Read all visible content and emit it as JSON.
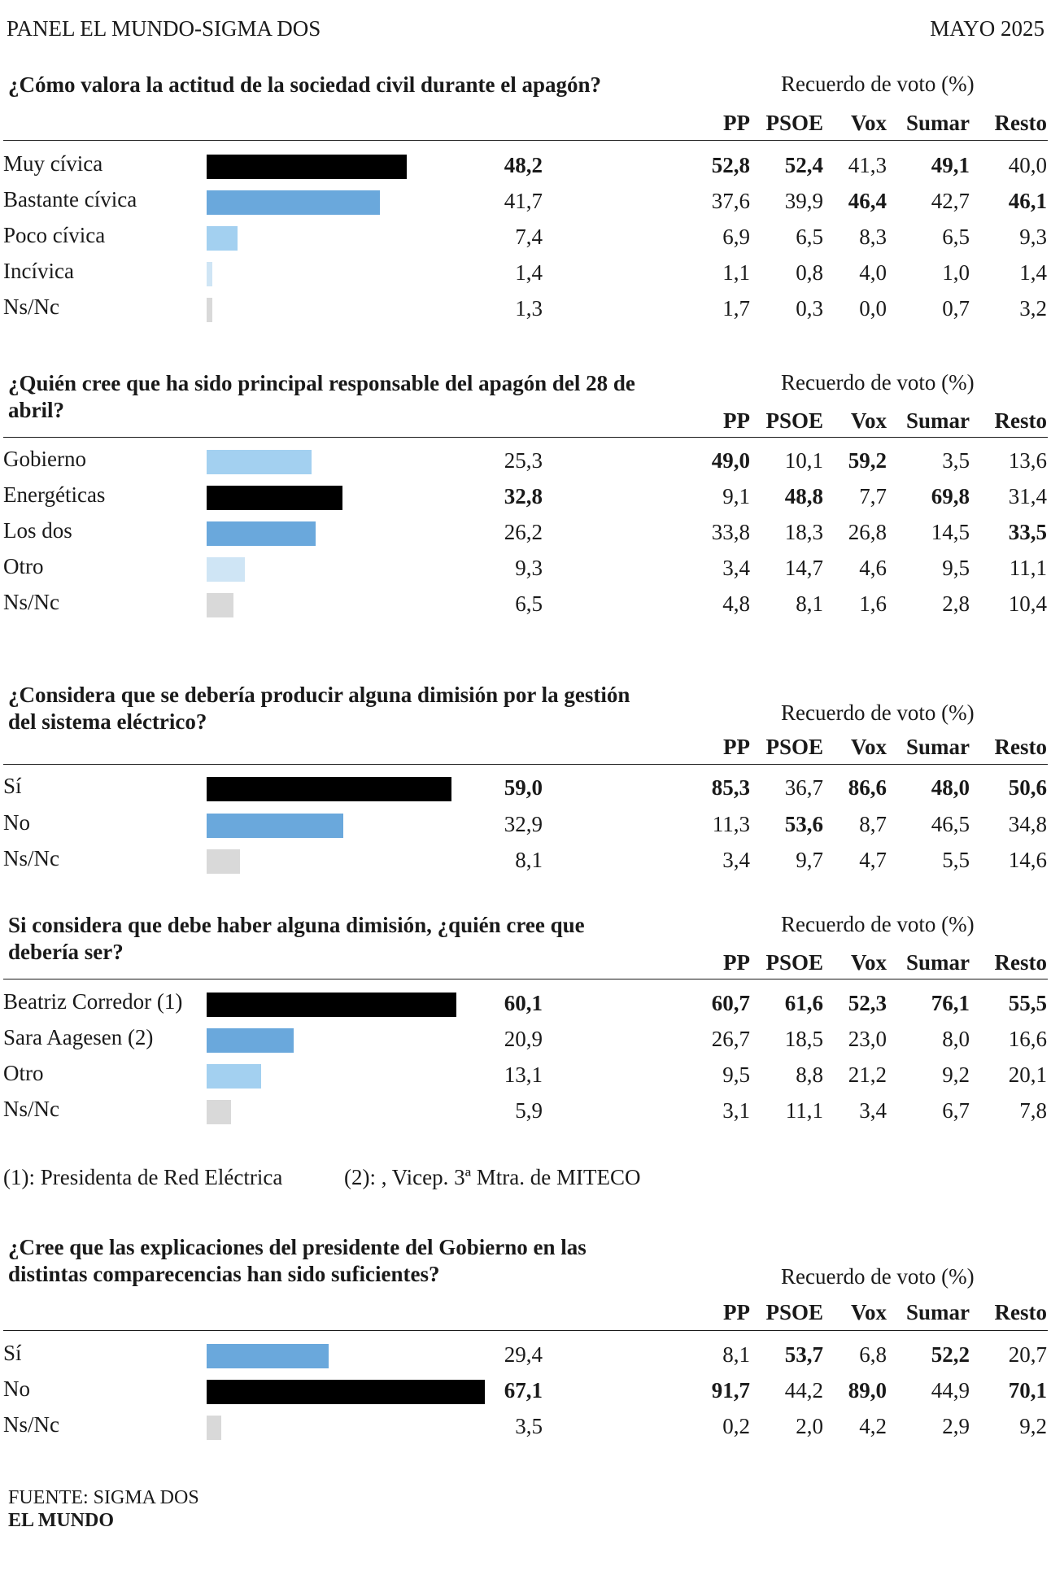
{
  "header": {
    "panel": "PANEL EL MUNDO-SIGMA DOS",
    "date": "MAYO 2025"
  },
  "colors": {
    "black": "#000000",
    "medium_blue": "#6aa8dc",
    "light_blue": "#a3d0f0",
    "pale_blue": "#cfe5f5",
    "gray": "#d9d9d9"
  },
  "columns": [
    "PP",
    "PSOE",
    "Vox",
    "Sumar",
    "Resto"
  ],
  "chart_data": [
    {
      "type": "table",
      "title": "¿Cómo valora la actitud de la sociedad civil durante el apagón?",
      "subtitle": "Recuerdo de voto (%)",
      "rows": [
        {
          "label": "Muy cívica",
          "total": "48,2",
          "total_bold": true,
          "value": 48.2,
          "color": "#000000",
          "cells": [
            "52,8",
            "52,4",
            "41,3",
            "49,1",
            "40,0"
          ],
          "bold": [
            true,
            true,
            false,
            true,
            false
          ]
        },
        {
          "label": "Bastante cívica",
          "total": "41,7",
          "total_bold": false,
          "value": 41.7,
          "color": "#6aa8dc",
          "cells": [
            "37,6",
            "39,9",
            "46,4",
            "42,7",
            "46,1"
          ],
          "bold": [
            false,
            false,
            true,
            false,
            true
          ]
        },
        {
          "label": "Poco cívica",
          "total": "7,4",
          "total_bold": false,
          "value": 7.4,
          "color": "#a3d0f0",
          "cells": [
            "6,9",
            "6,5",
            "8,3",
            "6,5",
            "9,3"
          ],
          "bold": [
            false,
            false,
            false,
            false,
            false
          ]
        },
        {
          "label": "Incívica",
          "total": "1,4",
          "total_bold": false,
          "value": 1.4,
          "color": "#cfe5f5",
          "cells": [
            "1,1",
            "0,8",
            "4,0",
            "1,0",
            "1,4"
          ],
          "bold": [
            false,
            false,
            false,
            false,
            false
          ]
        },
        {
          "label": "Ns/Nc",
          "total": "1,3",
          "total_bold": false,
          "value": 1.3,
          "color": "#d9d9d9",
          "cells": [
            "1,7",
            "0,3",
            "0,0",
            "0,7",
            "3,2"
          ],
          "bold": [
            false,
            false,
            false,
            false,
            false
          ]
        }
      ]
    },
    {
      "type": "table",
      "title": "¿Quién cree que ha sido principal responsable del apagón del 28 de abril?",
      "subtitle": "Recuerdo de voto (%)",
      "rows": [
        {
          "label": "Gobierno",
          "total": "25,3",
          "total_bold": false,
          "value": 25.3,
          "color": "#a3d0f0",
          "cells": [
            "49,0",
            "10,1",
            "59,2",
            "3,5",
            "13,6"
          ],
          "bold": [
            true,
            false,
            true,
            false,
            false
          ]
        },
        {
          "label": "Energéticas",
          "total": "32,8",
          "total_bold": true,
          "value": 32.8,
          "color": "#000000",
          "cells": [
            "9,1",
            "48,8",
            "7,7",
            "69,8",
            "31,4"
          ],
          "bold": [
            false,
            true,
            false,
            true,
            false
          ]
        },
        {
          "label": "Los dos",
          "total": "26,2",
          "total_bold": false,
          "value": 26.2,
          "color": "#6aa8dc",
          "cells": [
            "33,8",
            "18,3",
            "26,8",
            "14,5",
            "33,5"
          ],
          "bold": [
            false,
            false,
            false,
            false,
            true
          ]
        },
        {
          "label": "Otro",
          "total": "9,3",
          "total_bold": false,
          "value": 9.3,
          "color": "#cfe5f5",
          "cells": [
            "3,4",
            "14,7",
            "4,6",
            "9,5",
            "11,1"
          ],
          "bold": [
            false,
            false,
            false,
            false,
            false
          ]
        },
        {
          "label": "Ns/Nc",
          "total": "6,5",
          "total_bold": false,
          "value": 6.5,
          "color": "#d9d9d9",
          "cells": [
            "4,8",
            "8,1",
            "1,6",
            "2,8",
            "10,4"
          ],
          "bold": [
            false,
            false,
            false,
            false,
            false
          ]
        }
      ]
    },
    {
      "type": "table",
      "title": "¿Considera que se debería producir alguna dimisión por la gestión del sistema eléctrico?",
      "subtitle": "Recuerdo de voto (%)",
      "rows": [
        {
          "label": "Sí",
          "total": "59,0",
          "total_bold": true,
          "value": 59.0,
          "color": "#000000",
          "cells": [
            "85,3",
            "36,7",
            "86,6",
            "48,0",
            "50,6"
          ],
          "bold": [
            true,
            false,
            true,
            true,
            true
          ]
        },
        {
          "label": "No",
          "total": "32,9",
          "total_bold": false,
          "value": 32.9,
          "color": "#6aa8dc",
          "cells": [
            "11,3",
            "53,6",
            "8,7",
            "46,5",
            "34,8"
          ],
          "bold": [
            false,
            true,
            false,
            false,
            false
          ]
        },
        {
          "label": "Ns/Nc",
          "total": "8,1",
          "total_bold": false,
          "value": 8.1,
          "color": "#d9d9d9",
          "cells": [
            "3,4",
            "9,7",
            "4,7",
            "5,5",
            "14,6"
          ],
          "bold": [
            false,
            false,
            false,
            false,
            false
          ]
        }
      ]
    },
    {
      "type": "table",
      "title": "Si considera que debe haber alguna dimisión, ¿quién cree que debería ser?",
      "subtitle": "Recuerdo de voto (%)",
      "rows": [
        {
          "label": "Beatriz Corredor (1)",
          "total": "60,1",
          "total_bold": true,
          "value": 60.1,
          "color": "#000000",
          "cells": [
            "60,7",
            "61,6",
            "52,3",
            "76,1",
            "55,5"
          ],
          "bold": [
            true,
            true,
            true,
            true,
            true
          ]
        },
        {
          "label": "Sara Aagesen (2)",
          "total": "20,9",
          "total_bold": false,
          "value": 20.9,
          "color": "#6aa8dc",
          "cells": [
            "26,7",
            "18,5",
            "23,0",
            "8,0",
            "16,6"
          ],
          "bold": [
            false,
            false,
            false,
            false,
            false
          ]
        },
        {
          "label": "Otro",
          "total": "13,1",
          "total_bold": false,
          "value": 13.1,
          "color": "#a3d0f0",
          "cells": [
            "9,5",
            "8,8",
            "21,2",
            "9,2",
            "20,1"
          ],
          "bold": [
            false,
            false,
            false,
            false,
            false
          ]
        },
        {
          "label": "Ns/Nc",
          "total": "5,9",
          "total_bold": false,
          "value": 5.9,
          "color": "#d9d9d9",
          "cells": [
            "3,1",
            "11,1",
            "3,4",
            "6,7",
            "7,8"
          ],
          "bold": [
            false,
            false,
            false,
            false,
            false
          ]
        }
      ]
    },
    {
      "type": "table",
      "title": "¿Cree que las explicaciones del presidente del  Gobierno en las distintas comparecencias  han sido suficientes?",
      "subtitle": "Recuerdo de voto (%)",
      "rows": [
        {
          "label": "Sí",
          "total": "29,4",
          "total_bold": false,
          "value": 29.4,
          "color": "#6aa8dc",
          "cells": [
            "8,1",
            "53,7",
            "6,8",
            "52,2",
            "20,7"
          ],
          "bold": [
            false,
            true,
            false,
            true,
            false
          ]
        },
        {
          "label": "No",
          "total": "67,1",
          "total_bold": true,
          "value": 67.1,
          "color": "#000000",
          "cells": [
            "91,7",
            "44,2",
            "89,0",
            "44,9",
            "70,1"
          ],
          "bold": [
            true,
            false,
            true,
            false,
            true
          ]
        },
        {
          "label": "Ns/Nc",
          "total": "3,5",
          "total_bold": false,
          "value": 3.5,
          "color": "#d9d9d9",
          "cells": [
            "0,2",
            "2,0",
            "4,2",
            "2,9",
            "9,2"
          ],
          "bold": [
            false,
            false,
            false,
            false,
            false
          ]
        }
      ]
    }
  ],
  "footnotes": {
    "note1": "(1): Presidenta de Red Eléctrica",
    "note2": "(2): , Vicep. 3ª Mtra. de MITECO"
  },
  "footer": {
    "source": "FUENTE: SIGMA DOS",
    "brand": "EL MUNDO"
  }
}
